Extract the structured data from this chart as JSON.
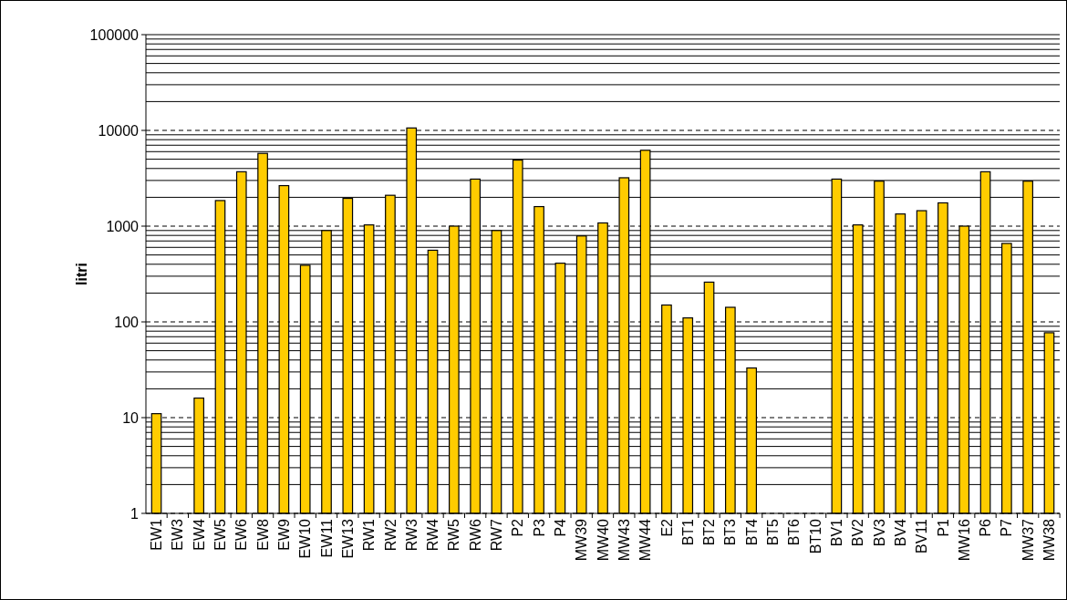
{
  "chart_data": {
    "type": "bar",
    "ylabel": "litri",
    "categories": [
      "EW1",
      "EW3",
      "EW4",
      "EW5",
      "EW6",
      "EW8",
      "EW9",
      "EW10",
      "EW11",
      "EW13",
      "RW1",
      "RW2",
      "RW3",
      "RW4",
      "RW5",
      "RW6",
      "RW7",
      "P2",
      "P3",
      "P4",
      "MW39",
      "MW40",
      "MW43",
      "MW44",
      "E2",
      "BT1",
      "BT2",
      "BT3",
      "BT4",
      "BT5",
      "BT6",
      "BT10",
      "BV1",
      "BV2",
      "BV3",
      "BV4",
      "BV11",
      "P1",
      "MW16",
      "P6",
      "P7",
      "MW37",
      "MW38"
    ],
    "values": [
      11,
      null,
      16,
      1850,
      3700,
      5750,
      2650,
      390,
      900,
      1950,
      1030,
      2100,
      10600,
      560,
      1000,
      3100,
      900,
      4900,
      1600,
      410,
      790,
      1080,
      3200,
      6200,
      150,
      110,
      260,
      142,
      33,
      null,
      null,
      null,
      3100,
      1030,
      2950,
      1340,
      1450,
      1750,
      1000,
      3700,
      660,
      2950,
      77
    ],
    "color": "#ffcc00",
    "log": true,
    "ylim": [
      1,
      100000
    ],
    "yticks": [
      1,
      10,
      100,
      1000,
      10000,
      100000
    ],
    "grid": "y"
  }
}
